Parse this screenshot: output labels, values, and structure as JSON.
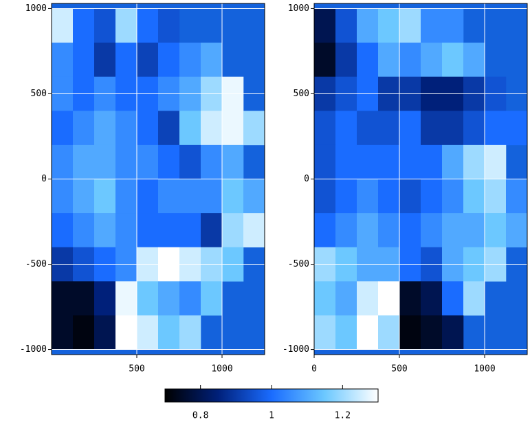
{
  "chart_data": [
    {
      "type": "heatmap",
      "xbins": [
        0,
        125,
        250,
        375,
        500,
        625,
        750,
        875,
        1000,
        1125,
        1250
      ],
      "ybins": [
        1000,
        800,
        600,
        400,
        200,
        0,
        -200,
        -400,
        -600,
        -800,
        -1000
      ],
      "values": [
        [
          1.25,
          1.0,
          0.95,
          1.2,
          1.0,
          0.95,
          null,
          null,
          null,
          null
        ],
        [
          1.05,
          1.0,
          0.9,
          1.0,
          0.92,
          1.0,
          1.05,
          1.1,
          null,
          null
        ],
        [
          1.05,
          1.0,
          1.05,
          1.0,
          1.0,
          1.05,
          1.1,
          1.2,
          1.28,
          null
        ],
        [
          1.0,
          1.05,
          1.1,
          1.05,
          1.0,
          0.92,
          1.15,
          1.25,
          1.28,
          1.2
        ],
        [
          1.05,
          1.1,
          1.1,
          1.05,
          1.05,
          1.0,
          0.95,
          1.05,
          1.1,
          null
        ],
        [
          1.05,
          1.1,
          1.15,
          1.05,
          1.0,
          1.05,
          1.05,
          1.05,
          1.15,
          1.1
        ],
        [
          1.0,
          1.05,
          1.1,
          1.05,
          1.0,
          1.0,
          1.0,
          0.9,
          1.2,
          1.25
        ],
        [
          0.9,
          0.95,
          1.0,
          1.05,
          1.25,
          1.3,
          1.25,
          1.2,
          1.15,
          null
        ],
        [
          0.75,
          0.75,
          0.85,
          1.28,
          1.15,
          1.1,
          1.05,
          1.15,
          null,
          null
        ],
        [
          0.75,
          0.72,
          0.8,
          1.3,
          1.25,
          1.15,
          1.2,
          null,
          null,
          null
        ]
      ],
      "xlim": [
        0,
        1250
      ],
      "ylim": [
        -1030,
        1030
      ],
      "xticks": [
        500,
        1000
      ],
      "yticks": [
        1000,
        500,
        0,
        -500,
        -1000
      ],
      "grid": true,
      "background": "#1462dc"
    },
    {
      "type": "heatmap",
      "xbins": [
        0,
        125,
        250,
        375,
        500,
        625,
        750,
        875,
        1000,
        1125,
        1250
      ],
      "ybins": [
        1000,
        800,
        600,
        400,
        200,
        0,
        -200,
        -400,
        -600,
        -800,
        -1000
      ],
      "values": [
        [
          0.8,
          0.95,
          1.1,
          1.15,
          1.2,
          1.05,
          1.05,
          null,
          null,
          null
        ],
        [
          0.75,
          0.9,
          1.0,
          1.1,
          1.05,
          1.1,
          1.15,
          1.1,
          null,
          null
        ],
        [
          0.9,
          0.95,
          1.0,
          0.9,
          0.9,
          0.85,
          0.85,
          0.9,
          0.95,
          null
        ],
        [
          0.95,
          1.0,
          0.95,
          0.95,
          1.0,
          0.9,
          0.9,
          0.95,
          1.0,
          1.0
        ],
        [
          0.95,
          1.0,
          1.0,
          1.0,
          1.0,
          1.0,
          1.1,
          1.2,
          1.25,
          null
        ],
        [
          0.95,
          1.0,
          1.05,
          1.0,
          0.95,
          1.0,
          1.05,
          1.15,
          1.2,
          1.05
        ],
        [
          1.0,
          1.05,
          1.1,
          1.05,
          1.0,
          1.05,
          1.1,
          1.1,
          1.15,
          1.1
        ],
        [
          1.2,
          1.15,
          1.1,
          1.1,
          1.0,
          0.95,
          1.1,
          1.15,
          1.2,
          null
        ],
        [
          1.15,
          1.1,
          1.25,
          1.3,
          0.75,
          0.8,
          1.0,
          1.2,
          null,
          null
        ],
        [
          1.2,
          1.15,
          1.3,
          1.2,
          0.72,
          0.75,
          0.8,
          null,
          null,
          null
        ]
      ],
      "xlim": [
        0,
        1250
      ],
      "ylim": [
        -1030,
        1030
      ],
      "xticks": [
        0,
        500,
        1000
      ],
      "yticks": [
        1000,
        500,
        0,
        -500,
        -1000
      ],
      "grid": true,
      "background": "#1462dc"
    },
    {
      "type": "colorbar",
      "clim": [
        0.7,
        1.3
      ],
      "ticks": [
        0.8,
        1,
        1.2
      ],
      "colormap": [
        "#000000",
        "#00207a",
        "#1a6cff",
        "#6cc8ff",
        "#ffffff"
      ]
    }
  ]
}
